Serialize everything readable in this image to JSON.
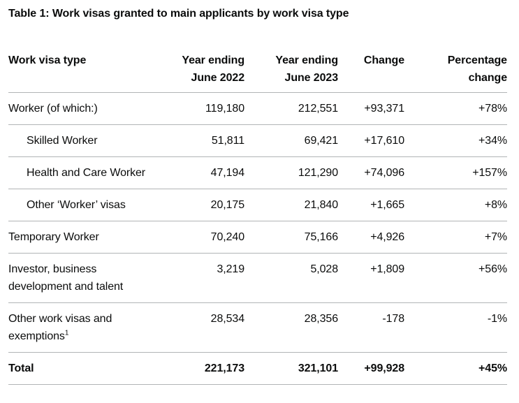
{
  "colors": {
    "text": "#0b0c0c",
    "divider": "#b1b4b6",
    "background": "#ffffff"
  },
  "chart_data": {
    "type": "table",
    "title": "Table 1: Work visas granted to main applicants by work visa type",
    "columns": [
      {
        "label": "Work visa type",
        "align": "left"
      },
      {
        "label": "Year ending\nJune 2022",
        "align": "right"
      },
      {
        "label": "Year ending\nJune 2023",
        "align": "right"
      },
      {
        "label": "Change",
        "align": "right"
      },
      {
        "label": "Percentage\nchange",
        "align": "right"
      }
    ],
    "rows": [
      {
        "label": "Worker (of which:)",
        "indent": false,
        "bold": false,
        "values": [
          "119,180",
          "212,551",
          "+93,371",
          "+78%"
        ]
      },
      {
        "label": "Skilled Worker",
        "indent": true,
        "bold": false,
        "values": [
          "51,811",
          "69,421",
          "+17,610",
          "+34%"
        ]
      },
      {
        "label": "Health and Care Worker",
        "indent": true,
        "bold": false,
        "values": [
          "47,194",
          "121,290",
          "+74,096",
          "+157%"
        ]
      },
      {
        "label": "Other ‘Worker’ visas",
        "indent": true,
        "bold": false,
        "values": [
          "20,175",
          "21,840",
          "+1,665",
          "+8%"
        ]
      },
      {
        "label": "Temporary Worker",
        "indent": false,
        "bold": false,
        "values": [
          "70,240",
          "75,166",
          "+4,926",
          "+7%"
        ]
      },
      {
        "label": "Investor, business development and talent",
        "indent": false,
        "bold": false,
        "values": [
          "3,219",
          "5,028",
          "+1,809",
          "+56%"
        ]
      },
      {
        "label": "Other work visas and exemptions",
        "sup": "1",
        "indent": false,
        "bold": false,
        "values": [
          "28,534",
          "28,356",
          "-178",
          "-1%"
        ]
      },
      {
        "label": "Total",
        "indent": false,
        "bold": true,
        "values": [
          "221,173",
          "321,101",
          "+99,928",
          "+45%"
        ]
      }
    ]
  }
}
